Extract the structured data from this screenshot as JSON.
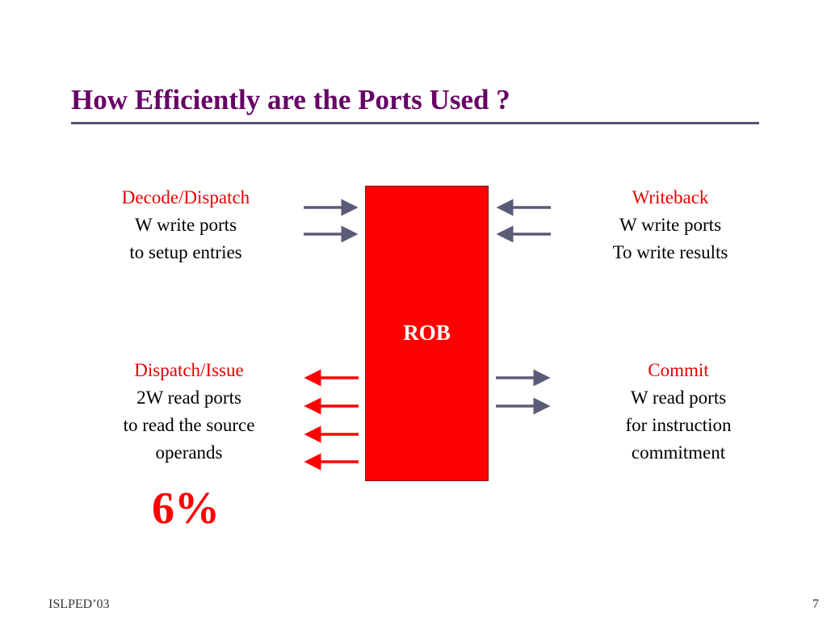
{
  "slide": {
    "title": "How Efficiently are the Ports Used ?",
    "rob_label": "ROB",
    "highlight": "6%",
    "footer_left": "ISLPED’03",
    "page_number": "7"
  },
  "blocks": {
    "decode": {
      "heading": "Decode/Dispatch",
      "lines": [
        "W  write ports",
        "to setup entries"
      ]
    },
    "writeback": {
      "heading": "Writeback",
      "lines": [
        "W  write ports",
        "To write results"
      ]
    },
    "issue": {
      "heading": "Dispatch/Issue",
      "lines": [
        "2W  read ports",
        "to read the source",
        "operands"
      ]
    },
    "commit": {
      "heading": "Commit",
      "lines": [
        "W  read ports",
        "for instruction",
        "commitment"
      ]
    }
  },
  "colors": {
    "title": "#660066",
    "accent": "#ff0000",
    "arrow_write": "#5b5b78",
    "arrow_read": "#ff0000"
  }
}
